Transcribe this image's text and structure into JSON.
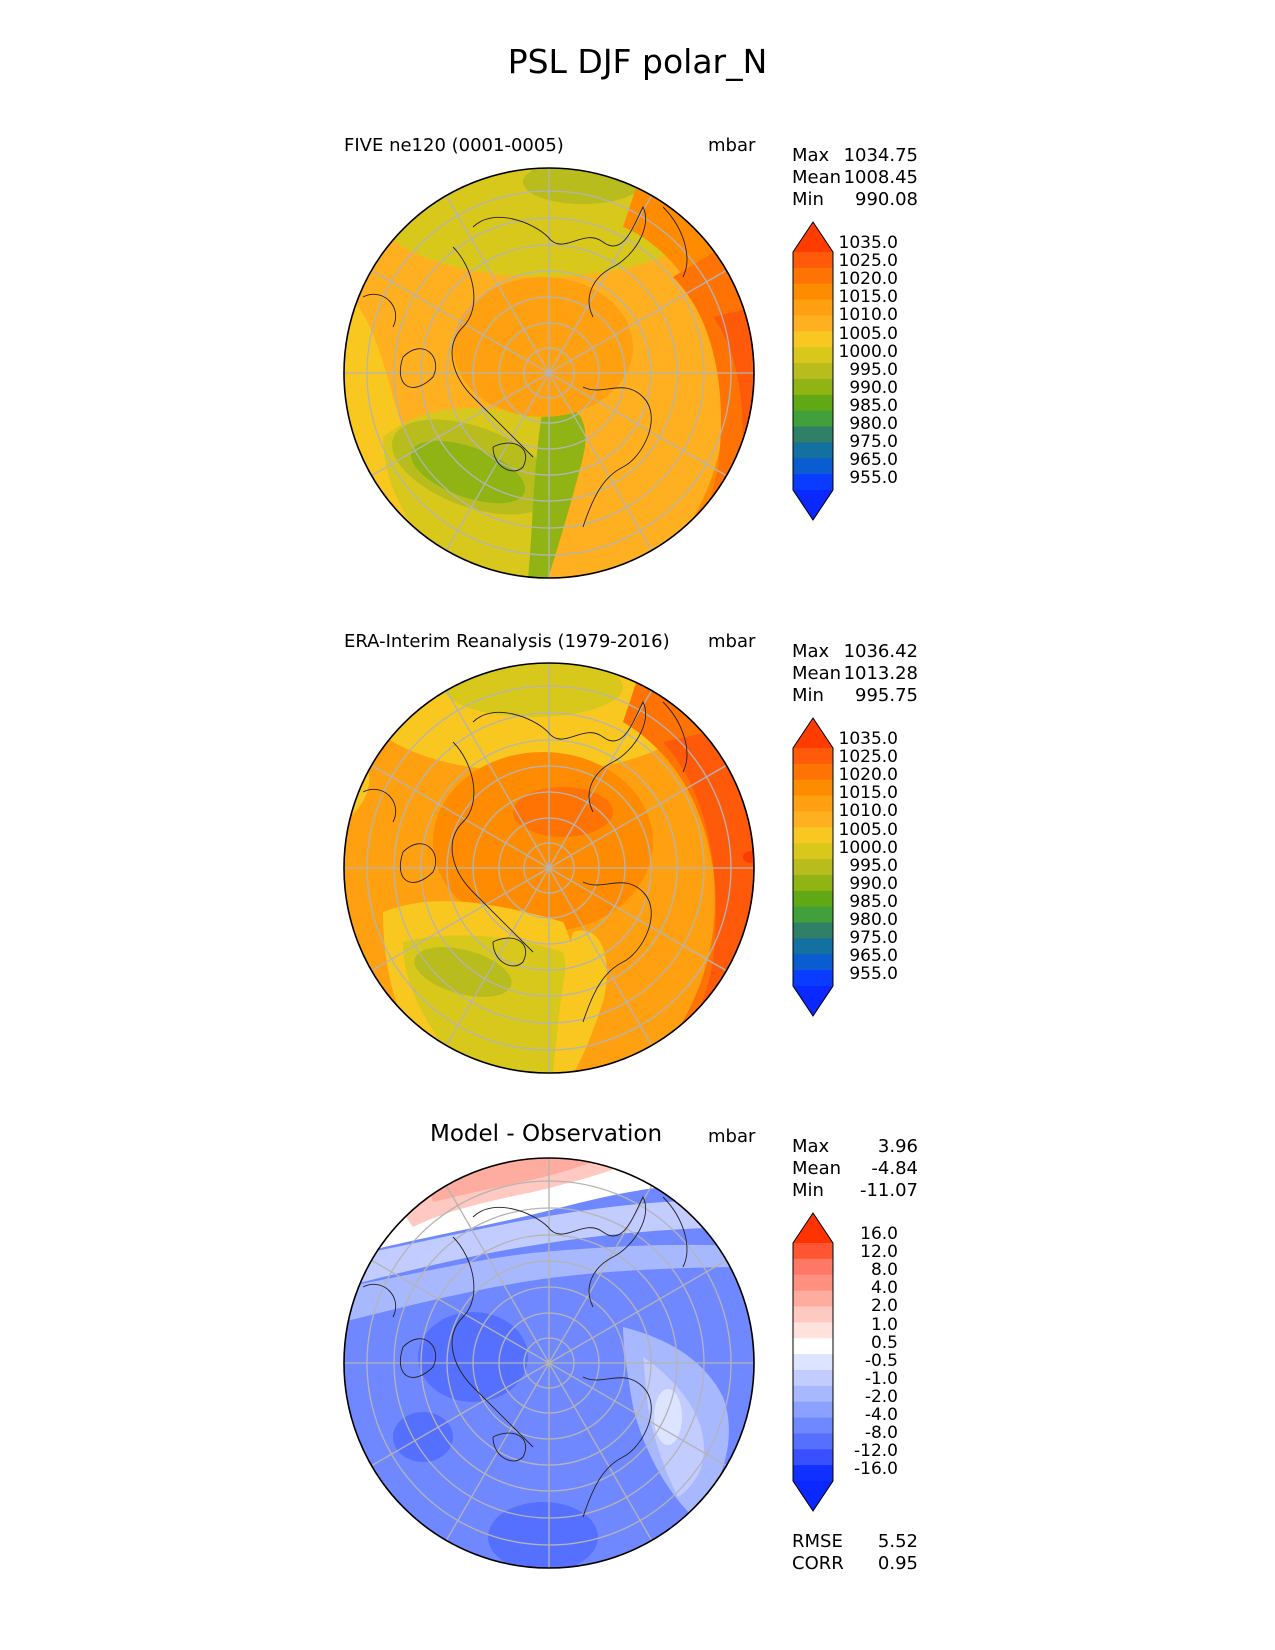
{
  "figure": {
    "title": "PSL DJF polar_N"
  },
  "panels": [
    {
      "label": "FIVE ne120 (0001-0005)",
      "units": "mbar",
      "stats": {
        "max_label": "Max",
        "max": "1034.75",
        "mean_label": "Mean",
        "mean": "1008.45",
        "min_label": "Min",
        "min": "990.08"
      }
    },
    {
      "label": "ERA-Interim Reanalysis (1979-2016)",
      "units": "mbar",
      "stats": {
        "max_label": "Max",
        "max": "1036.42",
        "mean_label": "Mean",
        "mean": "1013.28",
        "min_label": "Min",
        "min": "995.75"
      }
    },
    {
      "label": "Model - Observation",
      "units": "mbar",
      "stats": {
        "max_label": "Max",
        "max": "3.96",
        "mean_label": "Mean",
        "mean": "-4.84",
        "min_label": "Min",
        "min": "-11.07"
      },
      "metrics": {
        "rmse_label": "RMSE",
        "rmse": "5.52",
        "corr_label": "CORR",
        "corr": "0.95"
      }
    }
  ],
  "colorbars": {
    "abs": {
      "ticks": [
        "1035.0",
        "1025.0",
        "1020.0",
        "1015.0",
        "1010.0",
        "1005.0",
        "1000.0",
        "995.0",
        "990.0",
        "985.0",
        "980.0",
        "975.0",
        "965.0",
        "955.0"
      ],
      "colors": [
        "#ff5a0a",
        "#ff7305",
        "#ff8c00",
        "#ffa010",
        "#ffb020",
        "#f8c820",
        "#d8c81c",
        "#b8bc1c",
        "#90b414",
        "#60a814",
        "#40a03c",
        "#308068",
        "#1470a0",
        "#0a5cd0",
        "#0a3cff"
      ],
      "top_color": "#ff3c00",
      "bottom_color": "#0a28ff"
    },
    "diff": {
      "ticks": [
        "16.0",
        "12.0",
        "8.0",
        "4.0",
        "2.0",
        "1.0",
        "0.5",
        "-0.5",
        "-1.0",
        "-2.0",
        "-4.0",
        "-8.0",
        "-12.0",
        "-16.0"
      ],
      "colors": [
        "#ff5533",
        "#ff7866",
        "#ff9080",
        "#ffaca0",
        "#ffc8c0",
        "#ffe2dc",
        "#ffffff",
        "#dde4ff",
        "#c2ccff",
        "#a8b8ff",
        "#8ca0ff",
        "#7088ff",
        "#5570ff",
        "#3850ff",
        "#1030ff"
      ],
      "top_color": "#ff3300",
      "bottom_color": "#0a28ff"
    }
  },
  "chart_data": [
    {
      "type": "heatmap",
      "title": "FIVE ne120 (0001-0005)",
      "projection": "north polar stereographic",
      "units": "mbar",
      "levels": [
        955,
        965,
        975,
        980,
        985,
        990,
        995,
        1000,
        1005,
        1010,
        1015,
        1020,
        1025,
        1035
      ],
      "max": 1034.75,
      "mean": 1008.45,
      "min": 990.08
    },
    {
      "type": "heatmap",
      "title": "ERA-Interim Reanalysis (1979-2016)",
      "projection": "north polar stereographic",
      "units": "mbar",
      "levels": [
        955,
        965,
        975,
        980,
        985,
        990,
        995,
        1000,
        1005,
        1010,
        1015,
        1020,
        1025,
        1035
      ],
      "max": 1036.42,
      "mean": 1013.28,
      "min": 995.75
    },
    {
      "type": "heatmap",
      "title": "Model - Observation",
      "projection": "north polar stereographic",
      "units": "mbar",
      "levels": [
        -16,
        -12,
        -8,
        -4,
        -2,
        -1,
        -0.5,
        0.5,
        1,
        2,
        4,
        8,
        12,
        16
      ],
      "max": 3.96,
      "mean": -4.84,
      "min": -11.07,
      "rmse": 5.52,
      "corr": 0.95
    }
  ]
}
